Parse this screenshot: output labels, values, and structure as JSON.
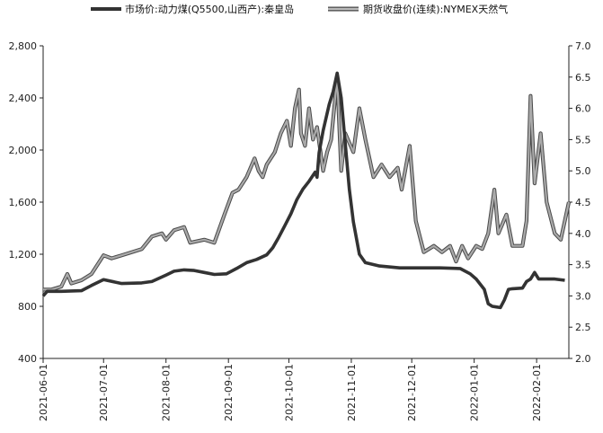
{
  "chart_data": {
    "type": "line",
    "legend": {
      "placement": "top"
    },
    "grid": false,
    "x": [
      "2021-06-01",
      "2021-07-01",
      "2021-08-01",
      "2021-09-01",
      "2021-10-01",
      "2021-11-01",
      "2021-12-01",
      "2022-01-01",
      "2022-02-01"
    ],
    "x_tick_labels": [
      "2021-06-01",
      "2021-07-01",
      "2021-08-01",
      "2021-09-01",
      "2021-10-01",
      "2021-11-01",
      "2021-12-01",
      "2022-01-01",
      "2022-02-01"
    ],
    "y_left": {
      "ylim": [
        400,
        2800
      ],
      "ticks": [
        "400",
        "800",
        "1,200",
        "1,600",
        "2,000",
        "2,400",
        "2,800"
      ]
    },
    "y_right": {
      "ylim": [
        2.0,
        7.0
      ],
      "ticks": [
        "2.0",
        "2.5",
        "3.0",
        "3.5",
        "4.0",
        "4.5",
        "5.0",
        "5.5",
        "6.0",
        "6.5",
        "7.0"
      ]
    },
    "series": [
      {
        "name": "市场价:动力煤(Q5500,山西产):秦皇岛",
        "axis": "left",
        "color": "#333333",
        "points": [
          [
            "2021-06-01",
            880
          ],
          [
            "2021-06-03",
            915
          ],
          [
            "2021-06-10",
            915
          ],
          [
            "2021-06-20",
            920
          ],
          [
            "2021-06-25",
            960
          ],
          [
            "2021-07-01",
            1005
          ],
          [
            "2021-07-10",
            975
          ],
          [
            "2021-07-20",
            980
          ],
          [
            "2021-07-25",
            990
          ],
          [
            "2021-08-01",
            1040
          ],
          [
            "2021-08-05",
            1070
          ],
          [
            "2021-08-10",
            1080
          ],
          [
            "2021-08-15",
            1075
          ],
          [
            "2021-08-20",
            1060
          ],
          [
            "2021-08-25",
            1045
          ],
          [
            "2021-08-31",
            1050
          ],
          [
            "2021-09-05",
            1090
          ],
          [
            "2021-09-10",
            1135
          ],
          [
            "2021-09-15",
            1160
          ],
          [
            "2021-09-20",
            1195
          ],
          [
            "2021-09-23",
            1250
          ],
          [
            "2021-09-26",
            1330
          ],
          [
            "2021-09-29",
            1420
          ],
          [
            "2021-10-02",
            1510
          ],
          [
            "2021-10-05",
            1620
          ],
          [
            "2021-10-08",
            1700
          ],
          [
            "2021-10-11",
            1760
          ],
          [
            "2021-10-14",
            1830
          ],
          [
            "2021-10-15",
            1790
          ],
          [
            "2021-10-16",
            1980
          ],
          [
            "2021-10-18",
            2150
          ],
          [
            "2021-10-21",
            2350
          ],
          [
            "2021-10-23",
            2450
          ],
          [
            "2021-10-25",
            2590
          ],
          [
            "2021-10-27",
            2400
          ],
          [
            "2021-10-29",
            2050
          ],
          [
            "2021-10-31",
            1700
          ],
          [
            "2021-11-02",
            1450
          ],
          [
            "2021-11-05",
            1200
          ],
          [
            "2021-11-08",
            1135
          ],
          [
            "2021-11-15",
            1110
          ],
          [
            "2021-11-25",
            1095
          ],
          [
            "2021-12-05",
            1095
          ],
          [
            "2021-12-15",
            1095
          ],
          [
            "2021-12-25",
            1090
          ],
          [
            "2021-12-30",
            1050
          ],
          [
            "2022-01-02",
            1010
          ],
          [
            "2022-01-06",
            930
          ],
          [
            "2022-01-08",
            820
          ],
          [
            "2022-01-10",
            800
          ],
          [
            "2022-01-12",
            795
          ],
          [
            "2022-01-14",
            790
          ],
          [
            "2022-01-16",
            850
          ],
          [
            "2022-01-18",
            930
          ],
          [
            "2022-01-20",
            935
          ],
          [
            "2022-01-25",
            940
          ],
          [
            "2022-01-27",
            990
          ],
          [
            "2022-01-29",
            1010
          ],
          [
            "2022-01-31",
            1060
          ],
          [
            "2022-02-02",
            1010
          ],
          [
            "2022-02-10",
            1010
          ],
          [
            "2022-02-15",
            1000
          ]
        ]
      },
      {
        "name": "期货收盘价(连续):NYMEX天然气",
        "axis": "right",
        "color": "#aaaaaa",
        "points": [
          [
            "2021-06-01",
            3.1
          ],
          [
            "2021-06-05",
            3.1
          ],
          [
            "2021-06-10",
            3.15
          ],
          [
            "2021-06-13",
            3.35
          ],
          [
            "2021-06-15",
            3.2
          ],
          [
            "2021-06-20",
            3.25
          ],
          [
            "2021-06-25",
            3.35
          ],
          [
            "2021-07-01",
            3.65
          ],
          [
            "2021-07-05",
            3.6
          ],
          [
            "2021-07-10",
            3.65
          ],
          [
            "2021-07-15",
            3.7
          ],
          [
            "2021-07-20",
            3.75
          ],
          [
            "2021-07-25",
            3.95
          ],
          [
            "2021-07-30",
            4.0
          ],
          [
            "2021-08-01",
            3.9
          ],
          [
            "2021-08-05",
            4.05
          ],
          [
            "2021-08-10",
            4.1
          ],
          [
            "2021-08-13",
            3.85
          ],
          [
            "2021-08-20",
            3.9
          ],
          [
            "2021-08-25",
            3.85
          ],
          [
            "2021-08-30",
            4.3
          ],
          [
            "2021-09-03",
            4.65
          ],
          [
            "2021-09-06",
            4.7
          ],
          [
            "2021-09-10",
            4.9
          ],
          [
            "2021-09-14",
            5.2
          ],
          [
            "2021-09-16",
            5.0
          ],
          [
            "2021-09-18",
            4.9
          ],
          [
            "2021-09-20",
            5.1
          ],
          [
            "2021-09-24",
            5.3
          ],
          [
            "2021-09-27",
            5.6
          ],
          [
            "2021-09-30",
            5.8
          ],
          [
            "2021-10-02",
            5.4
          ],
          [
            "2021-10-04",
            6.0
          ],
          [
            "2021-10-06",
            6.3
          ],
          [
            "2021-10-07",
            5.6
          ],
          [
            "2021-10-09",
            5.4
          ],
          [
            "2021-10-11",
            6.0
          ],
          [
            "2021-10-13",
            5.5
          ],
          [
            "2021-10-15",
            5.7
          ],
          [
            "2021-10-18",
            5.0
          ],
          [
            "2021-10-20",
            5.3
          ],
          [
            "2021-10-22",
            5.5
          ],
          [
            "2021-10-25",
            6.5
          ],
          [
            "2021-10-27",
            5.0
          ],
          [
            "2021-10-29",
            5.6
          ],
          [
            "2021-11-02",
            5.3
          ],
          [
            "2021-11-05",
            6.0
          ],
          [
            "2021-11-08",
            5.5
          ],
          [
            "2021-11-12",
            4.9
          ],
          [
            "2021-11-16",
            5.1
          ],
          [
            "2021-11-20",
            4.9
          ],
          [
            "2021-11-24",
            5.05
          ],
          [
            "2021-11-26",
            4.7
          ],
          [
            "2021-11-30",
            5.4
          ],
          [
            "2021-12-03",
            4.2
          ],
          [
            "2021-12-07",
            3.7
          ],
          [
            "2021-12-12",
            3.8
          ],
          [
            "2021-12-16",
            3.7
          ],
          [
            "2021-12-20",
            3.8
          ],
          [
            "2021-12-23",
            3.55
          ],
          [
            "2021-12-26",
            3.8
          ],
          [
            "2021-12-29",
            3.6
          ],
          [
            "2022-01-02",
            3.8
          ],
          [
            "2022-01-05",
            3.75
          ],
          [
            "2022-01-08",
            4.0
          ],
          [
            "2022-01-11",
            4.7
          ],
          [
            "2022-01-13",
            4.0
          ],
          [
            "2022-01-17",
            4.3
          ],
          [
            "2022-01-20",
            3.8
          ],
          [
            "2022-01-25",
            3.8
          ],
          [
            "2022-01-27",
            4.2
          ],
          [
            "2022-01-29",
            6.2
          ],
          [
            "2022-01-31",
            4.8
          ],
          [
            "2022-02-03",
            5.6
          ],
          [
            "2022-02-06",
            4.5
          ],
          [
            "2022-02-10",
            4.0
          ],
          [
            "2022-02-13",
            3.9
          ],
          [
            "2022-02-17",
            4.5
          ]
        ]
      }
    ]
  }
}
